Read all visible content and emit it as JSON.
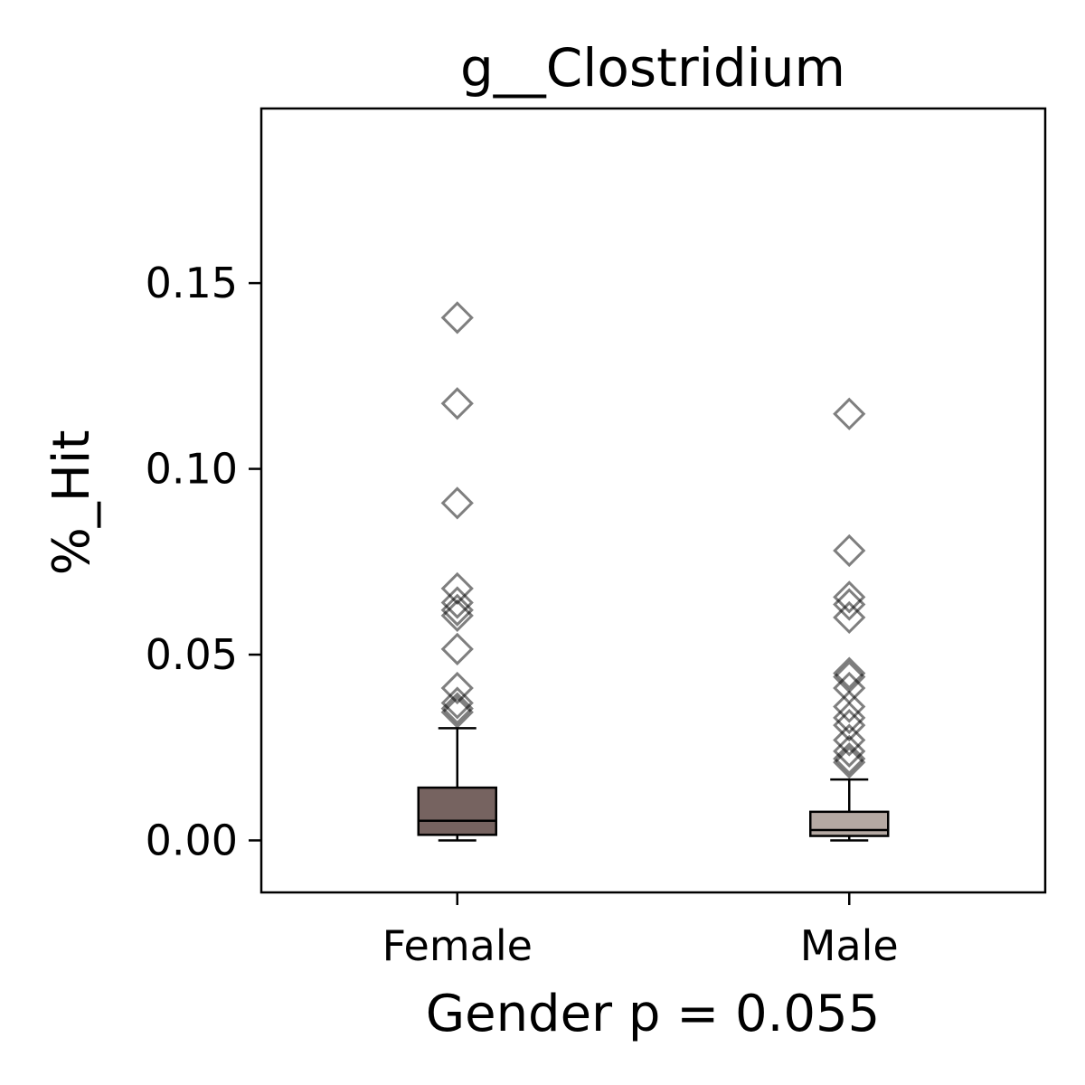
{
  "chart_data": {
    "type": "box",
    "title": "g__Clostridium",
    "xlabel": "Gender p = 0.055",
    "ylabel": "%_Hit",
    "ylim": [
      -0.014,
      0.197
    ],
    "yticks": [
      0.0,
      0.05,
      0.1,
      0.15
    ],
    "ytick_labels": [
      "0.00",
      "0.05",
      "0.10",
      "0.15"
    ],
    "grid": false,
    "categories": [
      "Female",
      "Male"
    ],
    "boxes": [
      {
        "name": "Female",
        "color": "#766360",
        "min": 0.0,
        "q1": 0.0015,
        "median": 0.0053,
        "q3": 0.0142,
        "max": 0.0302,
        "outliers": [
          0.1407,
          0.1176,
          0.0908,
          0.0678,
          0.064,
          0.062,
          0.0605,
          0.0515,
          0.041,
          0.037,
          0.0355,
          0.0345
        ]
      },
      {
        "name": "Male",
        "color": "#b5a9a3",
        "min": 0.0,
        "q1": 0.0012,
        "median": 0.0028,
        "q3": 0.0077,
        "max": 0.0164,
        "outliers": [
          0.1148,
          0.078,
          0.0655,
          0.0635,
          0.06,
          0.045,
          0.044,
          0.041,
          0.036,
          0.033,
          0.031,
          0.027,
          0.024,
          0.022,
          0.021
        ]
      }
    ]
  }
}
